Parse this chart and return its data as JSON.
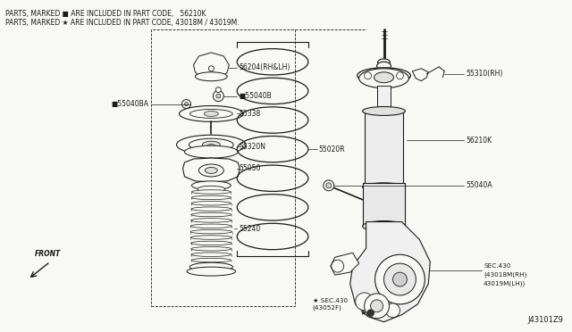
{
  "bg_color": "#f8f8f5",
  "line_color": "#1a1a1a",
  "text_color": "#1a1a1a",
  "header_line1": "PARTS, MARKED ■ ARE INCLUDED IN PART CODE,   56210K",
  "header_line2": "PARTS, MARKED ★ ARE INCLUDED IN PART CODE, 43018M / 43019M.",
  "footer_code": "J43101Z9",
  "label_56204": "56204(RH&LH)",
  "label_55040B": "■55040B",
  "label_55040BA": "■55040BA",
  "label_55338": "55338",
  "label_55320N": "55320N",
  "label_55050": "55050",
  "label_55240": "55240",
  "label_55020R": "55020R",
  "label_55310": "55310(RH)",
  "label_56210K": "56210K",
  "label_55040A": "55040A",
  "label_sec430a": "★ SEC.430\n(43052F)",
  "label_sec430b": "SEC.430\n(43018M(RH)\n43019M(LH))"
}
